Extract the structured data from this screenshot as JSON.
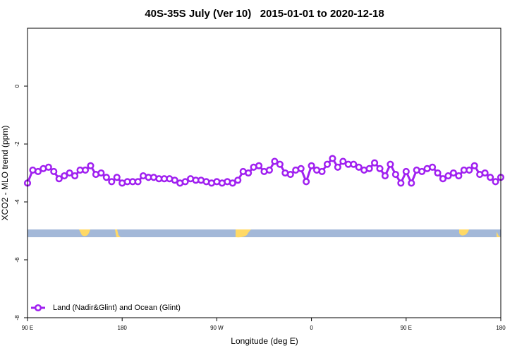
{
  "chart_data": {
    "type": "line",
    "title": "40S-35S July (Ver 10)   2015-01-01 to 2020-12-18",
    "xlabel": "Longitude (deg E)",
    "ylabel": "XCO2 - MLO trend (ppm)",
    "xlim": [
      90,
      540
    ],
    "xticks": [
      {
        "value": 90,
        "label": "90 E"
      },
      {
        "value": 180,
        "label": "180"
      },
      {
        "value": 270,
        "label": "90 W"
      },
      {
        "value": 360,
        "label": "0"
      },
      {
        "value": 450,
        "label": "90 E"
      },
      {
        "value": 540,
        "label": "180"
      }
    ],
    "ylim": [
      -8,
      2
    ],
    "yticks": [
      -8,
      -6,
      -4,
      -2,
      0
    ],
    "legend": "lower left",
    "x": [
      90,
      95,
      100,
      105,
      110,
      115,
      120,
      125,
      130,
      135,
      140,
      145,
      150,
      155,
      160,
      165,
      170,
      175,
      180,
      185,
      190,
      195,
      200,
      205,
      210,
      215,
      220,
      225,
      230,
      235,
      240,
      245,
      250,
      255,
      260,
      265,
      270,
      275,
      280,
      285,
      290,
      295,
      300,
      305,
      310,
      315,
      320,
      325,
      330,
      335,
      340,
      345,
      350,
      355,
      360,
      365,
      370,
      375,
      380,
      385,
      390,
      395,
      400,
      405,
      410,
      415,
      420,
      425,
      430,
      435,
      440,
      445,
      450,
      455,
      460,
      465,
      470,
      475,
      480,
      485,
      490,
      495,
      500,
      505,
      510,
      515,
      520,
      525,
      530,
      535,
      540
    ],
    "series": [
      {
        "name": "Land (Nadir&Glint) and Ocean (Glint)",
        "color": "#a020f0",
        "values": [
          -3.35,
          -2.9,
          -2.95,
          -2.85,
          -2.8,
          -2.95,
          -3.2,
          -3.1,
          -3.0,
          -3.1,
          -2.9,
          -2.9,
          -2.75,
          -3.05,
          -3.0,
          -3.15,
          -3.3,
          -3.15,
          -3.35,
          -3.3,
          -3.3,
          -3.3,
          -3.1,
          -3.15,
          -3.15,
          -3.2,
          -3.2,
          -3.2,
          -3.25,
          -3.35,
          -3.3,
          -3.2,
          -3.25,
          -3.25,
          -3.3,
          -3.35,
          -3.3,
          -3.35,
          -3.3,
          -3.35,
          -3.25,
          -2.95,
          -3.0,
          -2.8,
          -2.75,
          -2.95,
          -2.9,
          -2.6,
          -2.7,
          -3.0,
          -3.05,
          -2.9,
          -2.85,
          -3.3,
          -2.75,
          -2.9,
          -2.95,
          -2.7,
          -2.5,
          -2.8,
          -2.6,
          -2.7,
          -2.7,
          -2.8,
          -2.9,
          -2.85,
          -2.65,
          -2.85,
          -3.1,
          -2.7,
          -3.05,
          -3.35,
          -2.95,
          -3.35,
          -2.9,
          -2.95,
          -2.85,
          -2.8,
          -3.0,
          -3.2,
          -3.1,
          -3.0,
          -3.1,
          -2.9,
          -2.9,
          -2.75,
          -3.05,
          -3.0,
          -3.15,
          -3.3,
          -3.15
        ]
      }
    ]
  }
}
